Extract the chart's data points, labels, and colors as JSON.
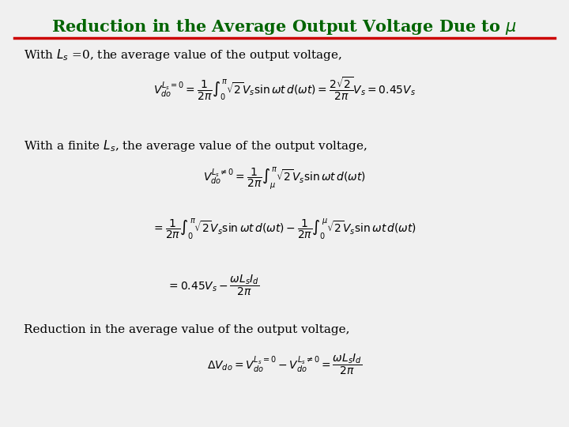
{
  "title": "Reduction in the Average Output Voltage Due to $\\mu$",
  "title_color": "#006400",
  "title_fontsize": 15,
  "line_color": "#cc0000",
  "bg_color": "#f0f0f0",
  "text1": "With $L_s$ =0, the average value of the output voltage,",
  "eq1": "$V_{do}^{L_s=0} = \\dfrac{1}{2\\pi}\\int_0^{\\pi}\\sqrt{2}V_s \\sin\\omega t\\, d(\\omega t) = \\dfrac{2\\sqrt{2}}{2\\pi}V_s = 0.45V_s$",
  "text2": "With a finite $L_s$, the average value of the output voltage,",
  "eq2a": "$V_{do}^{L_s\\neq 0} = \\dfrac{1}{2\\pi}\\int_{\\mu}^{\\pi}\\sqrt{2}V_s \\sin\\omega t\\, d(\\omega t)$",
  "eq2b": "$= \\dfrac{1}{2\\pi}\\int_0^{\\pi}\\sqrt{2}V_s \\sin\\omega t\\, d(\\omega t) - \\dfrac{1}{2\\pi}\\int_0^{\\mu}\\sqrt{2}V_s \\sin\\omega t\\, d(\\omega t)$",
  "eq2c": "$= 0.45V_s - \\dfrac{\\omega L_s I_d}{2\\pi}$",
  "text3": "Reduction in the average value of the output voltage,",
  "eq3": "$\\Delta V_{do} = V_{do}^{L_s=0} - V_{do}^{L_s\\neq 0} = \\dfrac{\\omega L_s I_d}{2\\pi}$",
  "text_fontsize": 11,
  "eq_fontsize": 10
}
